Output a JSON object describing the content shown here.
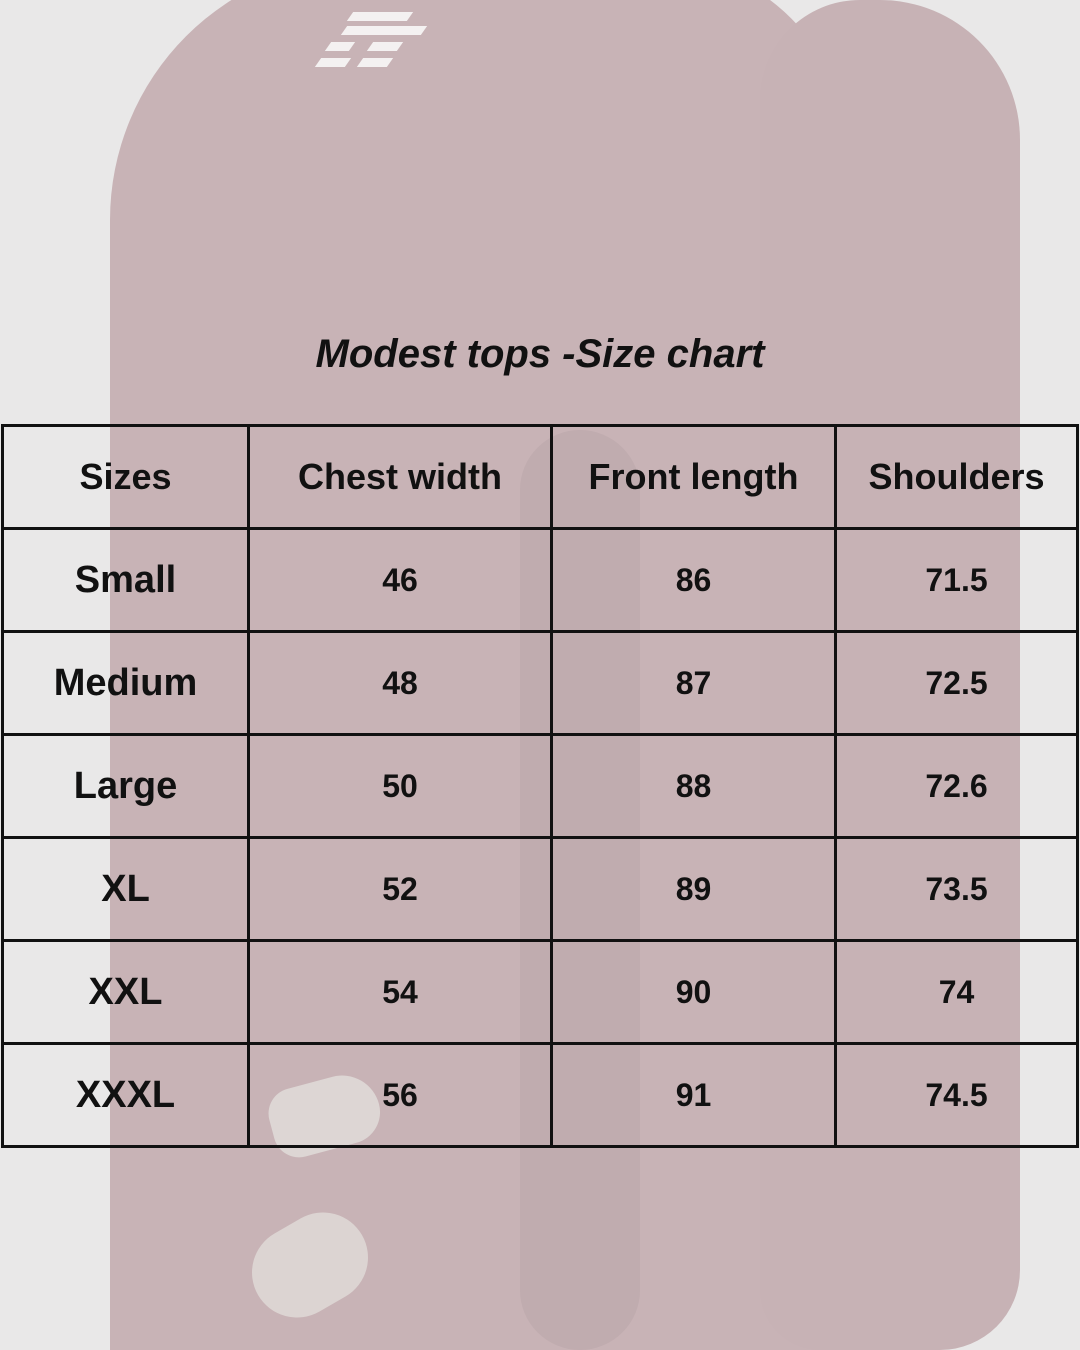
{
  "title": "Modest tops -Size chart",
  "table": {
    "headers": [
      "Sizes",
      "Chest width",
      "Front length",
      "Shoulders"
    ],
    "rows": [
      [
        "Small",
        "46",
        "86",
        "71.5"
      ],
      [
        "Medium",
        "48",
        "87",
        "72.5"
      ],
      [
        "Large",
        "50",
        "88",
        "72.6"
      ],
      [
        "XL",
        "52",
        "89",
        "73.5"
      ],
      [
        "XXL",
        "54",
        "90",
        "74"
      ],
      [
        "XXXL",
        "56",
        "91",
        "74.5"
      ]
    ]
  },
  "colors": {
    "background": "#e9e8e8",
    "garment_tint": "#c8b3b6",
    "text": "#111111"
  }
}
